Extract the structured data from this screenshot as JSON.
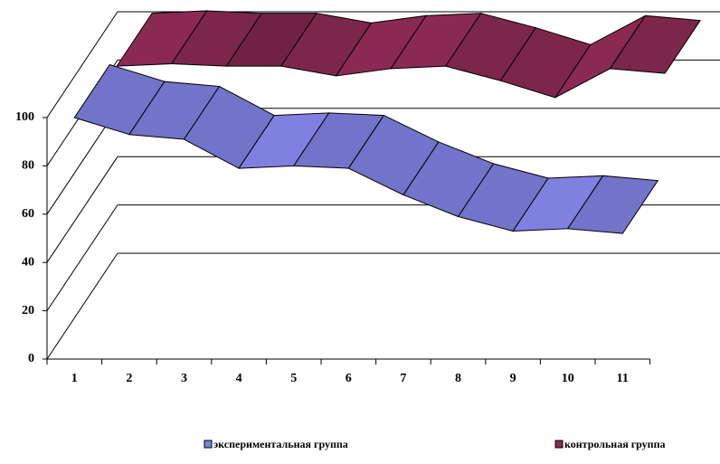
{
  "chart_data": {
    "type": "line3d",
    "categories": [
      "1",
      "2",
      "3",
      "4",
      "5",
      "6",
      "7",
      "8",
      "9",
      "10",
      "11"
    ],
    "series": [
      {
        "name": "экспериментальная группа",
        "color": "#8080e0",
        "values": [
          100,
          93,
          91,
          79,
          80,
          79,
          68,
          59,
          53,
          54,
          52
        ]
      },
      {
        "name": "контрольная группа",
        "color": "#8a2a52",
        "values": [
          95,
          96,
          95,
          95,
          91,
          94,
          95,
          89,
          82,
          94,
          92
        ]
      }
    ],
    "ylim": [
      0,
      100
    ],
    "yticks": [
      0,
      20,
      40,
      60,
      80,
      100
    ],
    "grid": true,
    "legend": "bottom"
  }
}
